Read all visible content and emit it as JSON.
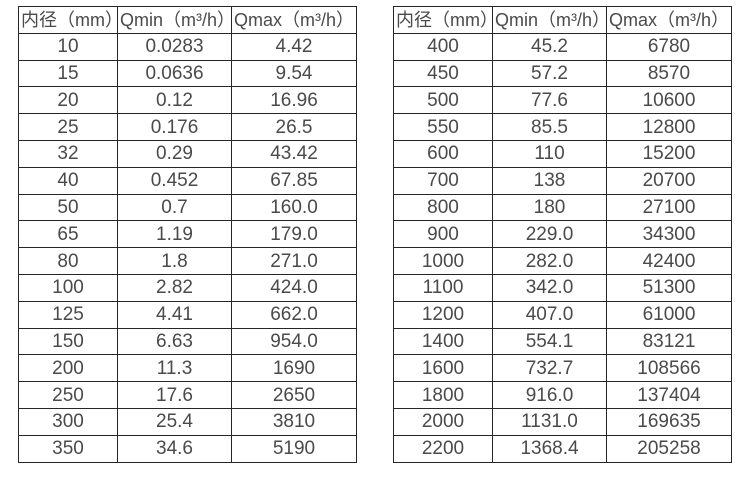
{
  "page": {
    "background": "#ffffff",
    "text_color": "#4a4a4a",
    "border_color": "#262626"
  },
  "tables": [
    {
      "name": "flow-table-small-diameter",
      "headers": [
        "内径（mm）",
        "Qmin（m³/h）",
        "Qmax（m³/h）"
      ],
      "rows": [
        [
          "10",
          "0.0283",
          "4.42"
        ],
        [
          "15",
          "0.0636",
          "9.54"
        ],
        [
          "20",
          "0.12",
          "16.96"
        ],
        [
          "25",
          "0.176",
          "26.5"
        ],
        [
          "32",
          "0.29",
          "43.42"
        ],
        [
          "40",
          "0.452",
          "67.85"
        ],
        [
          "50",
          "0.7",
          "160.0"
        ],
        [
          "65",
          "1.19",
          "179.0"
        ],
        [
          "80",
          "1.8",
          "271.0"
        ],
        [
          "100",
          "2.82",
          "424.0"
        ],
        [
          "125",
          "4.41",
          "662.0"
        ],
        [
          "150",
          "6.63",
          "954.0"
        ],
        [
          "200",
          "11.3",
          "1690"
        ],
        [
          "250",
          "17.6",
          "2650"
        ],
        [
          "300",
          "25.4",
          "3810"
        ],
        [
          "350",
          "34.6",
          "5190"
        ]
      ]
    },
    {
      "name": "flow-table-large-diameter",
      "headers": [
        "内径（mm）",
        "Qmin（m³/h）",
        "Qmax（m³/h）"
      ],
      "rows": [
        [
          "400",
          "45.2",
          "6780"
        ],
        [
          "450",
          "57.2",
          "8570"
        ],
        [
          "500",
          "77.6",
          "10600"
        ],
        [
          "550",
          "85.5",
          "12800"
        ],
        [
          "600",
          "110",
          "15200"
        ],
        [
          "700",
          "138",
          "20700"
        ],
        [
          "800",
          "180",
          "27100"
        ],
        [
          "900",
          "229.0",
          "34300"
        ],
        [
          "1000",
          "282.0",
          "42400"
        ],
        [
          "1100",
          "342.0",
          "51300"
        ],
        [
          "1200",
          "407.0",
          "61000"
        ],
        [
          "1400",
          "554.1",
          "83121"
        ],
        [
          "1600",
          "732.7",
          "108566"
        ],
        [
          "1800",
          "916.0",
          "137404"
        ],
        [
          "2000",
          "1131.0",
          "169635"
        ],
        [
          "2200",
          "1368.4",
          "205258"
        ]
      ]
    }
  ]
}
